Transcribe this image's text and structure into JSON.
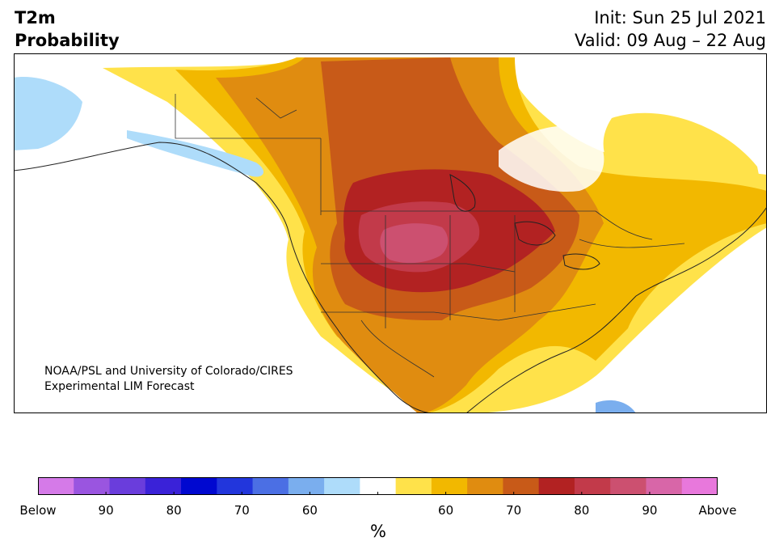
{
  "header": {
    "title_line1": "T2m",
    "title_line2": "Probability",
    "init": "Init: Sun 25 Jul 2021",
    "valid": "Valid: 09 Aug – 22 Aug"
  },
  "credit": {
    "line1": "NOAA/PSL and University of Colorado/CIRES",
    "line2": "Experimental LIM Forecast"
  },
  "colorbar": {
    "colors": [
      "#d57ae8",
      "#9a55e0",
      "#6a3ddc",
      "#3a22d8",
      "#0008d0",
      "#2236dc",
      "#4b6fe4",
      "#7aaeee",
      "#aedcfa",
      "#ffffff",
      "#ffe24a",
      "#f2b800",
      "#e08c10",
      "#c85a18",
      "#b22222",
      "#c23a4a",
      "#cc5070",
      "#d866a8",
      "#e878dc"
    ],
    "labels": [
      "Below",
      "90",
      "80",
      "70",
      "60",
      "",
      "60",
      "70",
      "80",
      "90",
      "Above"
    ],
    "unit": "%"
  }
}
